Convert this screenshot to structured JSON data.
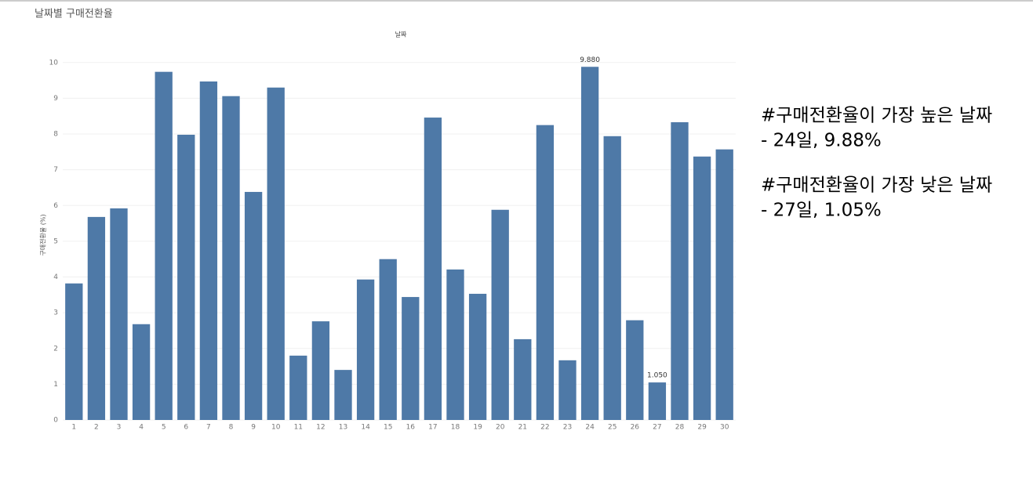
{
  "chart_data": {
    "type": "bar",
    "title": "날짜별 구매전환율",
    "x_label": "날짜",
    "y_label": "구매전환율 (%)",
    "categories": [
      "1",
      "2",
      "3",
      "4",
      "5",
      "6",
      "7",
      "8",
      "9",
      "10",
      "11",
      "12",
      "13",
      "14",
      "15",
      "16",
      "17",
      "18",
      "19",
      "20",
      "21",
      "22",
      "23",
      "24",
      "25",
      "26",
      "27",
      "28",
      "29",
      "30"
    ],
    "values": [
      3.82,
      5.68,
      5.92,
      2.68,
      9.74,
      7.98,
      9.47,
      9.06,
      6.38,
      9.3,
      1.8,
      2.76,
      1.4,
      3.93,
      4.5,
      3.44,
      8.46,
      4.21,
      3.53,
      5.88,
      2.26,
      8.25,
      1.67,
      9.88,
      7.94,
      2.79,
      1.05,
      8.33,
      7.37,
      7.57
    ],
    "value_labels": [
      null,
      null,
      null,
      null,
      null,
      null,
      null,
      null,
      null,
      null,
      null,
      null,
      null,
      null,
      null,
      null,
      null,
      null,
      null,
      null,
      null,
      null,
      null,
      "9.880",
      null,
      null,
      "1.050",
      null,
      null,
      null
    ],
    "color": "#4e79a7",
    "ylim": [
      0,
      10.5
    ],
    "yticks": [
      0,
      1,
      2,
      3,
      4,
      5,
      6,
      7,
      8,
      9,
      10
    ],
    "grid": true,
    "annotations": [
      "#구매전환율이 가장 높은 날짜",
      "- 24일, 9.88%",
      "#구매전환율이 가장 낮은 날짜",
      "- 27일, 1.05%"
    ]
  }
}
